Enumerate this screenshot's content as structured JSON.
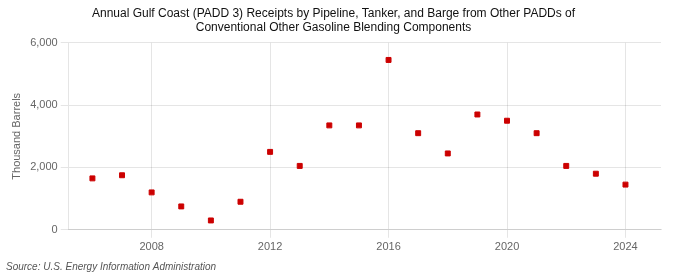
{
  "chart_data": {
    "type": "scatter",
    "title": "Annual Gulf Coast (PADD 3) Receipts by Pipeline, Tanker, and Barge from Other PADDs of\nConventional Other Gasoline Blending Components",
    "ylabel": "Thousand Barrels",
    "annotation": "Source: U.S. Energy Information Administration",
    "x": [
      2006,
      2007,
      2008,
      2009,
      2010,
      2011,
      2012,
      2013,
      2014,
      2015,
      2016,
      2017,
      2018,
      2019,
      2020,
      2021,
      2022,
      2023,
      2024
    ],
    "values": [
      1650,
      1750,
      1200,
      750,
      300,
      900,
      2500,
      2050,
      3350,
      3350,
      5450,
      3100,
      2450,
      3700,
      3500,
      3100,
      2050,
      1800,
      1450
    ],
    "color": "#cc0000",
    "marker": "square",
    "xlim": [
      2005.2,
      2025.2
    ],
    "xticks": [
      2008,
      2012,
      2016,
      2020,
      2024
    ],
    "ylim": [
      0,
      6000
    ],
    "yticks": [
      0,
      {
        "value": 2000,
        "label": "2,000"
      },
      {
        "value": 4000,
        "label": "4,000"
      },
      {
        "value": 6000,
        "label": "6,000"
      }
    ],
    "grid": true
  }
}
